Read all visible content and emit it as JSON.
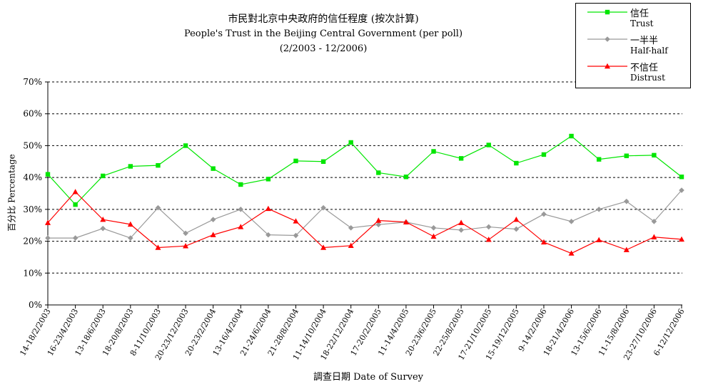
{
  "chart_data": {
    "type": "line",
    "title_zh": "市民對北京中央政府的信任程度 (按次計算)",
    "title": "People's Trust in the Beijing Central Government (per poll)",
    "subtitle": "(2/2003 -  12/2006)",
    "xlabel": "調查日期 Date of Survey",
    "ylabel": "百分比 Percentage",
    "ylim": [
      0,
      70
    ],
    "y_ticks": [
      "0%",
      "10%",
      "20%",
      "30%",
      "40%",
      "50%",
      "60%",
      "70%"
    ],
    "grid": "horizontal dashed",
    "legend_position": "top-right",
    "categories": [
      "14-18/2/2003",
      "16-23/4/2003",
      "13-18/6/2003",
      "18-20/8/2003",
      "8-11/10/2003",
      "20-23/12/2003",
      "20-23/2/2004",
      "13-16/4/2004",
      "21-24/6/2004",
      "21-28/8/2004",
      "11-14/10/2004",
      "18-22/12/2004",
      "17-20/2/2005",
      "11-14/4/2005",
      "20-23/6/2005",
      "22-25/8/2005",
      "17-21/10/2005",
      "15-19/12/2005",
      "9-14/2/2006",
      "18-21/4/2006",
      "13-15/6/2006",
      "11-15/8/2006",
      "23-27/10/2006",
      "6-12/12/2006"
    ],
    "x_tick_labels": [
      "14-18/2/2003",
      "16-23/4/2003",
      "13-18/6/2003",
      "18-20/8/2003",
      "8-11/10/2003",
      "20-23/12/2003",
      "20-23/2/2004",
      "13-16/4/2004",
      "21-24/6/2004",
      "21-28/8/2004",
      "11-14/10/2004",
      "18-22/12/2004",
      "17-20/2/2005",
      "11-14/4/2005",
      "20-23/6/2005",
      "22-25/8/2005",
      "17-21/10/2005",
      "15-19/12/2005",
      "9-14/2/2006",
      "18-21/4/2006",
      "13-15/6/2006",
      "11-15/8/2006",
      "23-27/10/2006",
      "6-12/12/2006"
    ],
    "series": [
      {
        "name_zh": "信任",
        "name": "Trust",
        "color": "#00e600",
        "marker": "square",
        "values": [
          41,
          31.5,
          40.5,
          43.5,
          43.8,
          50,
          42.8,
          37.8,
          39.5,
          45.2,
          45,
          51,
          41.5,
          40.2,
          48.2,
          46,
          50.2,
          44.5,
          47.2,
          53,
          45.7,
          46.8,
          47,
          40.2
        ]
      },
      {
        "name_zh": "一半半",
        "name": "Half-half",
        "color": "#999999",
        "marker": "diamond",
        "values": [
          21,
          21,
          24,
          21,
          30.5,
          22.5,
          26.8,
          30,
          22,
          21.8,
          30.5,
          24.2,
          25.2,
          26,
          24.2,
          23.5,
          24.5,
          23.8,
          28.5,
          26.2,
          30,
          32.5,
          26.2,
          36
        ]
      },
      {
        "name_zh": "不信任",
        "name": "Distrust",
        "color": "#ff0000",
        "marker": "triangle",
        "values": [
          25.8,
          35.5,
          26.8,
          25.3,
          18,
          18.5,
          22,
          24.5,
          30.2,
          26.3,
          18,
          18.6,
          26.5,
          26,
          21.5,
          25.8,
          20.5,
          26.8,
          19.7,
          16.2,
          20.4,
          17.3,
          21.3,
          20.6
        ]
      }
    ]
  }
}
